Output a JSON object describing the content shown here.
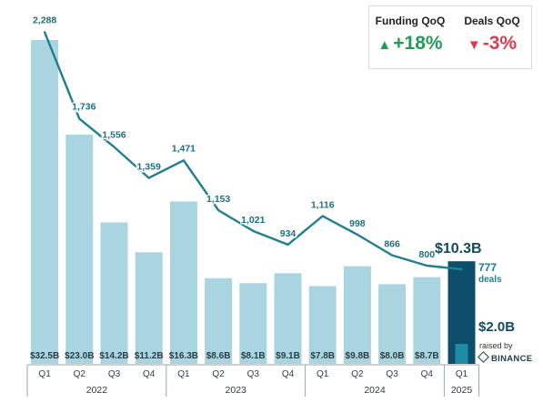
{
  "kpis": {
    "funding": {
      "title": "Funding QoQ",
      "arrow": "▲",
      "value": "+18%",
      "color": "#1f9d55"
    },
    "deals": {
      "title": "Deals QoQ",
      "arrow": "▼",
      "value": "-3%",
      "color": "#e03a4e"
    }
  },
  "highlight": {
    "funding": "$10.3B",
    "deals": "777",
    "deals_unit": "deals",
    "raised_amount": "$2.0B",
    "raised_text": "raised by",
    "raised_by": "BINANCE"
  },
  "chart_data": {
    "type": "bar",
    "title": "",
    "xlabel": "",
    "ylabel": "",
    "years": [
      "2022",
      "2023",
      "2024",
      "2025"
    ],
    "categories": [
      "Q1",
      "Q2",
      "Q3",
      "Q4",
      "Q1",
      "Q2",
      "Q3",
      "Q4",
      "Q1",
      "Q2",
      "Q3",
      "Q4",
      "Q1"
    ],
    "series": [
      {
        "kind": "bar",
        "unit": "$B",
        "values": [
          32.5,
          23.0,
          14.2,
          11.2,
          16.3,
          8.6,
          8.1,
          9.1,
          7.8,
          9.8,
          8.0,
          8.7,
          10.3
        ],
        "labels": [
          "$32.5B",
          "$23.0B",
          "$14.2B",
          "$11.2B",
          "$16.3B",
          "$8.6B",
          "$8.1B",
          "$9.1B",
          "$7.8B",
          "$9.8B",
          "$8.0B",
          "$8.7B",
          ""
        ]
      },
      {
        "kind": "line",
        "values": [
          2288,
          1736,
          1556,
          1359,
          1471,
          1153,
          1021,
          934,
          1116,
          998,
          866,
          800,
          777
        ],
        "labels": [
          "2,288",
          "1,736",
          "1,556",
          "1,359",
          "1,471",
          "1,153",
          "1,021",
          "934",
          "1,116",
          "998",
          "866",
          "800",
          ""
        ]
      },
      {
        "kind": "bar-inset",
        "unit": "$B",
        "values": [
          null,
          null,
          null,
          null,
          null,
          null,
          null,
          null,
          null,
          null,
          null,
          null,
          2.0
        ]
      }
    ],
    "highlight_index": 12,
    "colors": {
      "bar": "#a9d5e0",
      "highlight_bar": "#0d4f6b",
      "inset": "#1d8ca6",
      "line": "#1e7f93",
      "labels": "#2e3d44"
    },
    "grid": false,
    "legend": "none"
  }
}
